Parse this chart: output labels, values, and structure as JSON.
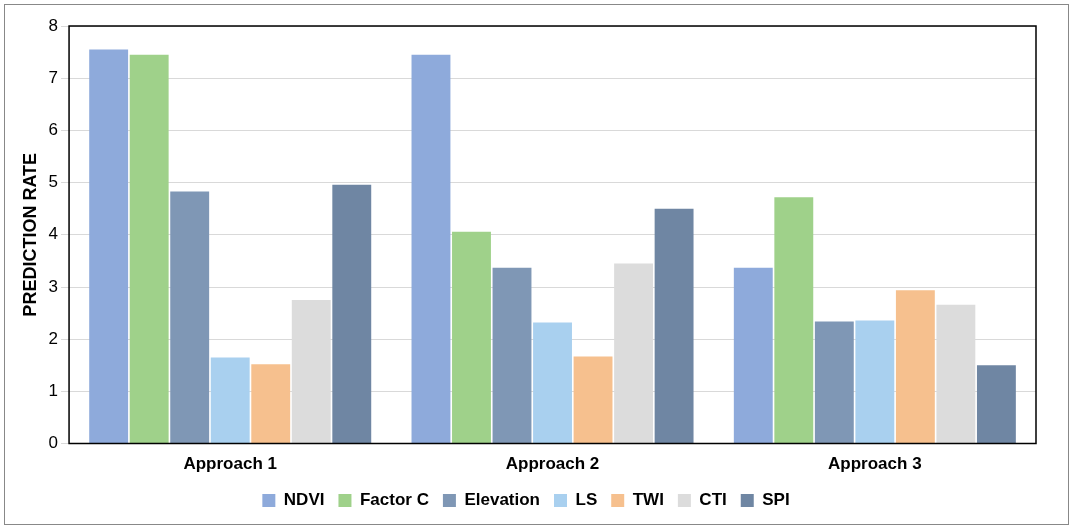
{
  "chart_data": {
    "type": "bar",
    "ylabel": "PREDICTION RATE",
    "categories": [
      "Approach 1",
      "Approach 2",
      "Approach 3"
    ],
    "series": [
      {
        "name": "NDVI",
        "color": "#8eaadb",
        "values": [
          7.55,
          7.45,
          3.37
        ]
      },
      {
        "name": "Factor C",
        "color": "#9fd18a",
        "values": [
          7.45,
          4.06,
          4.72
        ]
      },
      {
        "name": "Elevation",
        "color": "#7f97b5",
        "values": [
          4.83,
          3.37,
          2.34
        ]
      },
      {
        "name": "LS",
        "color": "#a9d0ef",
        "values": [
          1.65,
          2.32,
          2.36
        ]
      },
      {
        "name": "TWI",
        "color": "#f6c08e",
        "values": [
          1.52,
          1.67,
          2.94
        ]
      },
      {
        "name": "CTI",
        "color": "#dcdcdc",
        "values": [
          2.75,
          3.45,
          2.66
        ]
      },
      {
        "name": "SPI",
        "color": "#6f86a3",
        "values": [
          4.96,
          4.5,
          1.5
        ]
      }
    ],
    "ylim": [
      0,
      8
    ],
    "yticks": [
      0,
      1,
      2,
      3,
      4,
      5,
      6,
      7,
      8
    ],
    "grid": "y",
    "legend": "bottom"
  }
}
